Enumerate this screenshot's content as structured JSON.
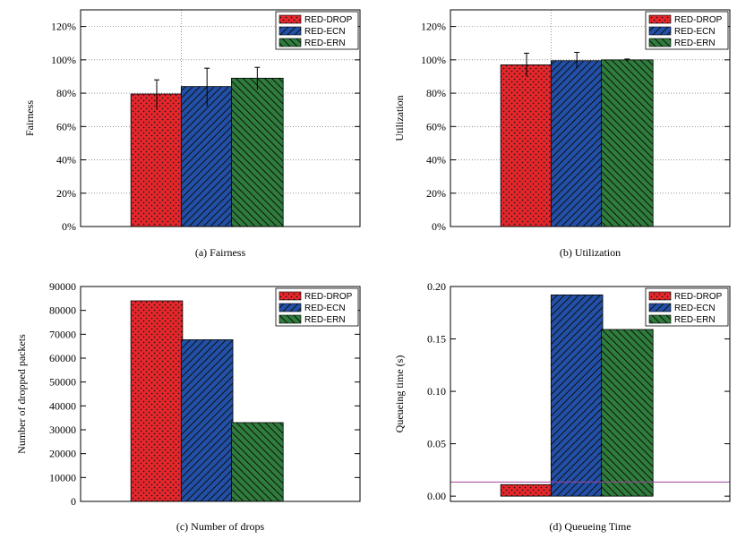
{
  "colors": {
    "RED-DROP": "#e8262b",
    "RED-ECN": "#2250a8",
    "RED-ERN": "#2e7d3c",
    "threshold_line": "#a0439c"
  },
  "chart_data": [
    {
      "id": "a",
      "type": "bar",
      "caption": "(a) Fairness",
      "ylabel": "Fairness",
      "ylim": [
        0,
        130
      ],
      "yticks": [
        0,
        20,
        40,
        60,
        80,
        100,
        120
      ],
      "ytick_labels": [
        "0%",
        "20%",
        "40%",
        "60%",
        "80%",
        "100%",
        "120%"
      ],
      "grid": true,
      "legend": "top-right",
      "series": [
        {
          "name": "RED-DROP",
          "value": 79.5,
          "err_low": 70,
          "err_high": 88
        },
        {
          "name": "RED-ECN",
          "value": 84,
          "err_low": 72,
          "err_high": 95
        },
        {
          "name": "RED-ERN",
          "value": 89,
          "err_low": 82,
          "err_high": 95.5
        }
      ]
    },
    {
      "id": "b",
      "type": "bar",
      "caption": "(b) Utilization",
      "ylabel": "Utilization",
      "ylim": [
        0,
        130
      ],
      "yticks": [
        0,
        20,
        40,
        60,
        80,
        100,
        120
      ],
      "ytick_labels": [
        "0%",
        "20%",
        "40%",
        "60%",
        "80%",
        "100%",
        "120%"
      ],
      "grid": true,
      "legend": "top-right",
      "series": [
        {
          "name": "RED-DROP",
          "value": 97,
          "err_low": 90,
          "err_high": 104
        },
        {
          "name": "RED-ECN",
          "value": 99.5,
          "err_low": 95,
          "err_high": 104.5
        },
        {
          "name": "RED-ERN",
          "value": 100,
          "err_low": 99.5,
          "err_high": 100.5
        }
      ]
    },
    {
      "id": "c",
      "type": "bar",
      "caption": "(c) Number of drops",
      "ylabel": "Number of dropped packets",
      "ylim": [
        0,
        90000
      ],
      "yticks": [
        0,
        10000,
        20000,
        30000,
        40000,
        50000,
        60000,
        70000,
        80000,
        90000
      ],
      "ytick_labels": [
        "0",
        "10000",
        "20000",
        "30000",
        "40000",
        "50000",
        "60000",
        "70000",
        "80000",
        "90000"
      ],
      "grid": false,
      "legend": "top-right",
      "series": [
        {
          "name": "RED-DROP",
          "value": 84000
        },
        {
          "name": "RED-ECN",
          "value": 67700
        },
        {
          "name": "RED-ERN",
          "value": 33000
        }
      ]
    },
    {
      "id": "d",
      "type": "bar",
      "caption": "(d) Queueing Time",
      "ylabel": "Queueing time (s)",
      "ylim": [
        -0.005,
        0.2
      ],
      "yticks": [
        0,
        0.05,
        0.1,
        0.15,
        0.2
      ],
      "ytick_labels": [
        "0.00",
        "0.05",
        "0.10",
        "0.15",
        "0.20"
      ],
      "grid": false,
      "legend": "top-right",
      "hline": 0.0135,
      "series": [
        {
          "name": "RED-DROP",
          "value": 0.011
        },
        {
          "name": "RED-ECN",
          "value": 0.192
        },
        {
          "name": "RED-ERN",
          "value": 0.159
        }
      ]
    }
  ]
}
